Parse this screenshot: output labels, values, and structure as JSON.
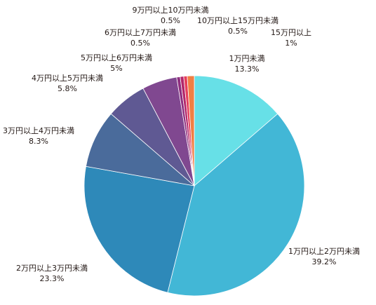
{
  "chart_data": {
    "type": "pie",
    "title": "",
    "start_angle": "12 o'clock",
    "direction": "clockwise",
    "series": [
      {
        "name": "1万円未満",
        "value": 13.3,
        "value_label": "13.3%",
        "color": "#67E0E7"
      },
      {
        "name": "1万円以上2万円未満",
        "value": 39.2,
        "value_label": "39.2%",
        "color": "#42B7D6"
      },
      {
        "name": "2万円以上3万円未満",
        "value": 23.3,
        "value_label": "23.3%",
        "color": "#2E89B9"
      },
      {
        "name": "3万円以上4万円未満",
        "value": 8.3,
        "value_label": "8.3%",
        "color": "#4A6B9B"
      },
      {
        "name": "4万円以上5万円未満",
        "value": 5.8,
        "value_label": "5.8%",
        "color": "#5F5993"
      },
      {
        "name": "5万円以上6万円未満",
        "value": 5,
        "value_label": "5%",
        "color": "#804890"
      },
      {
        "name": "6万円以上7万円未満",
        "value": 0.5,
        "value_label": "0.5%",
        "color": "#8E2F7F"
      },
      {
        "name": "9万円以上10万円未満",
        "value": 0.5,
        "value_label": "0.5%",
        "color": "#B2276A"
      },
      {
        "name": "10万円以上15万円未満",
        "value": 0.5,
        "value_label": "0.5%",
        "color": "#E63F5C"
      },
      {
        "name": "15万円以上",
        "value": 1,
        "value_label": "1%",
        "color": "#F07F44"
      }
    ]
  }
}
